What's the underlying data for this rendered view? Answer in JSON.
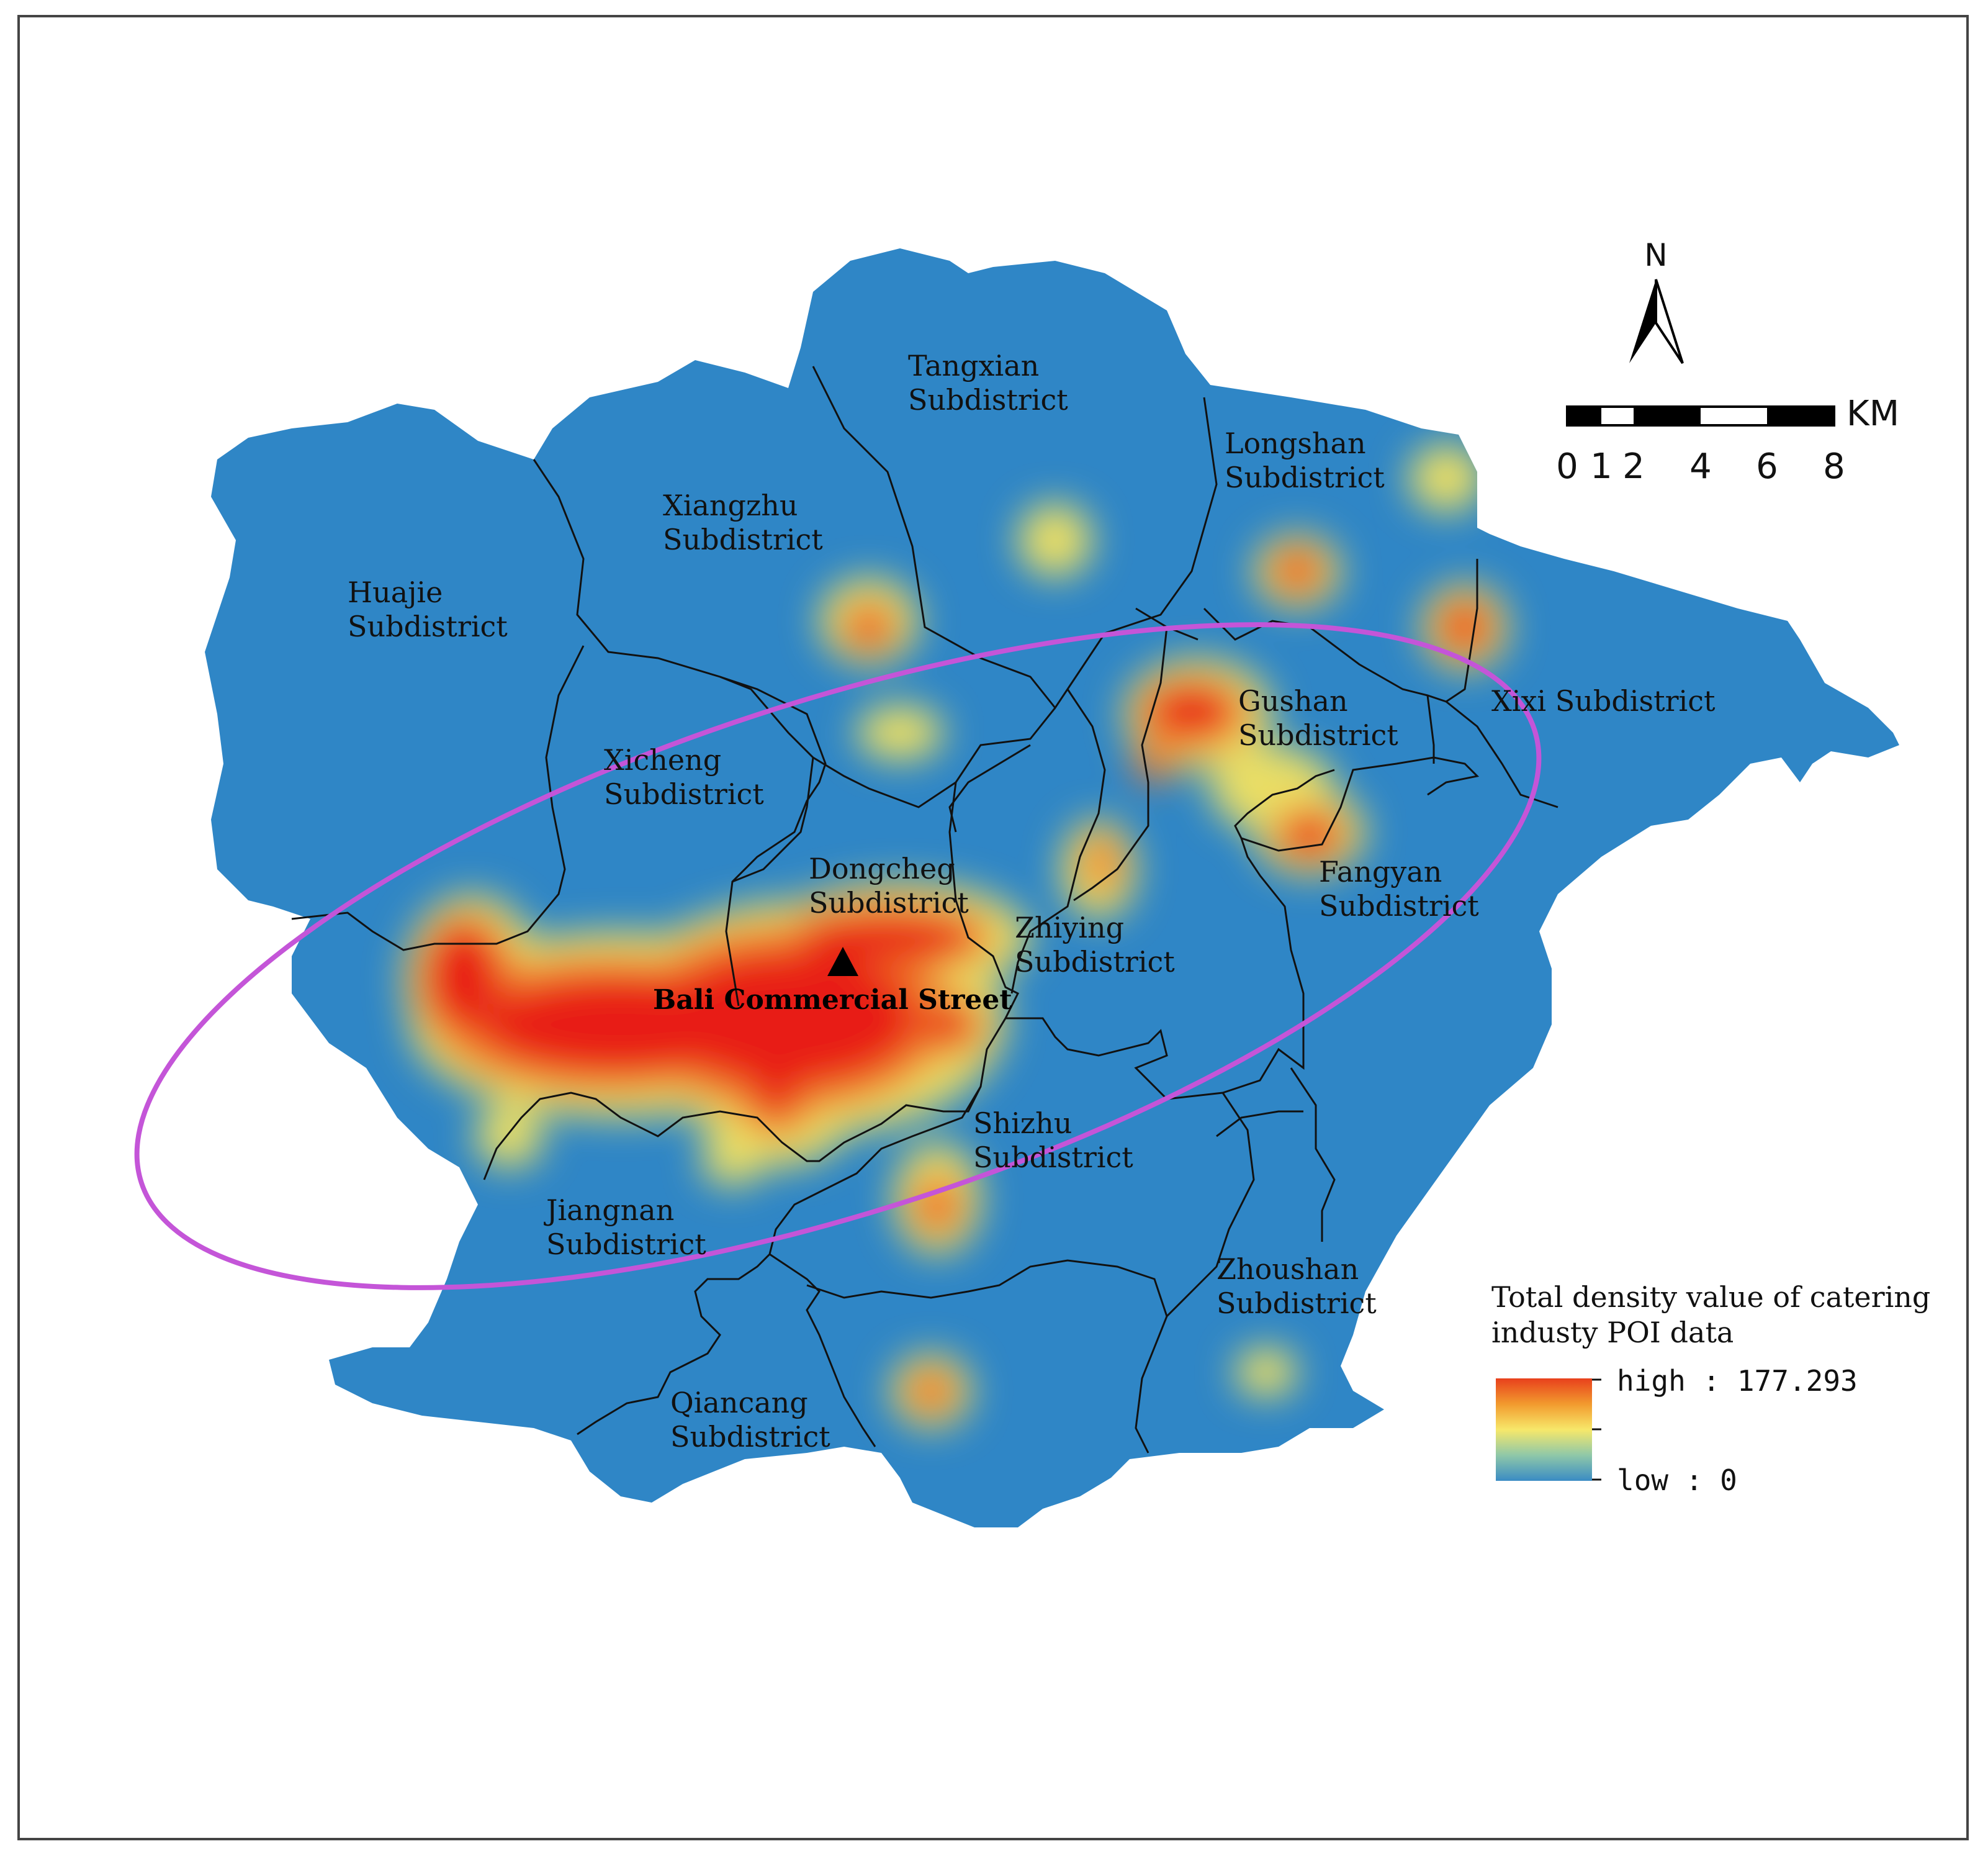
{
  "map": {
    "colors": {
      "base": "#2f86c6",
      "ellipse": "#c455d8",
      "boundary": "#111111"
    },
    "subdistricts": [
      {
        "id": "tangxian",
        "line1": "Tangxian",
        "line2": "Subdistrict"
      },
      {
        "id": "longshan",
        "line1": "Longshan",
        "line2": "Subdistrict"
      },
      {
        "id": "xiangzhu",
        "line1": "Xiangzhu",
        "line2": "Subdistrict"
      },
      {
        "id": "huajie",
        "line1": "Huajie",
        "line2": "Subdistrict"
      },
      {
        "id": "gushan",
        "line1": "Gushan",
        "line2": "Subdistrict"
      },
      {
        "id": "xixi",
        "line1": "Xixi Subdistrict",
        "line2": ""
      },
      {
        "id": "xicheng",
        "line1": "Xicheng",
        "line2": "Subdistrict"
      },
      {
        "id": "dongcheg",
        "line1": "Dongcheg",
        "line2": "Subdistrict"
      },
      {
        "id": "zhiying",
        "line1": "Zhiying",
        "line2": "Subdistrict"
      },
      {
        "id": "fangyan",
        "line1": "Fangyan",
        "line2": "Subdistrict"
      },
      {
        "id": "shizhu",
        "line1": "Shizhu",
        "line2": "Subdistrict"
      },
      {
        "id": "jiangnan",
        "line1": "Jiangnan",
        "line2": "Subdistrict"
      },
      {
        "id": "zhoushan",
        "line1": "Zhoushan",
        "line2": "Subdistrict"
      },
      {
        "id": "qiancang",
        "line1": "Qiancang",
        "line2": "Subdistrict"
      }
    ],
    "landmark": "Bali Commercial Street",
    "north_label": "N",
    "scale_bar": {
      "unit": "KM",
      "ticks": [
        "0",
        "1",
        "2",
        "4",
        "6",
        "8"
      ]
    },
    "legend": {
      "title_line1": "Total density value of catering",
      "title_line2": "industy POI data",
      "high_label": "high : 177.293",
      "low_label": "low : 0",
      "high_value": 177.293,
      "low_value": 0,
      "ramp": [
        "#e8401c",
        "#f29a2e",
        "#f7e86a",
        "#8fc8a8",
        "#3a8cc4"
      ]
    }
  }
}
